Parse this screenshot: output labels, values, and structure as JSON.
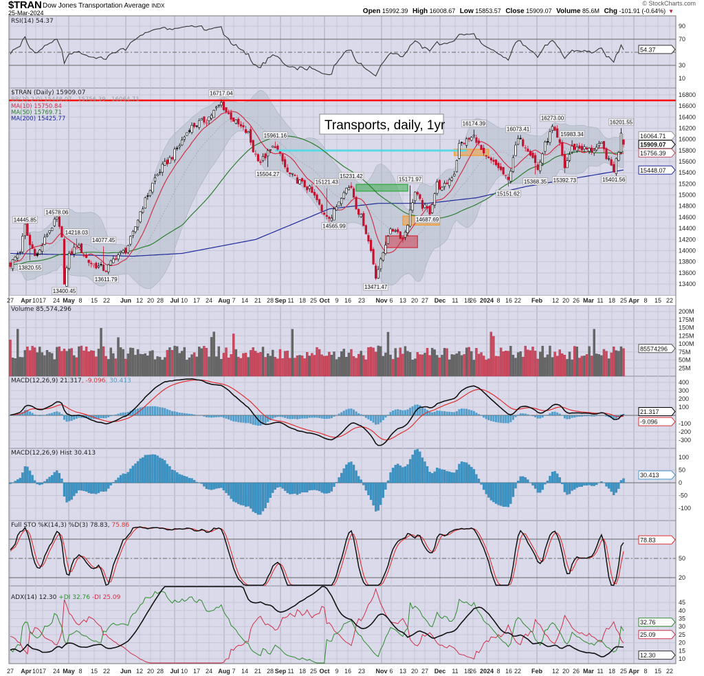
{
  "header": {
    "symbol": "$TRAN",
    "name": "Dow Jones Transportation Average",
    "exchange": "INDX",
    "date": "25-Mar-2024",
    "copyright": "© StockCharts.com",
    "open_label": "Open",
    "open": "15992.39",
    "high_label": "High",
    "high": "16008.67",
    "low_label": "Low",
    "low": "15853.57",
    "close_label": "Close",
    "close": "15909.07",
    "volume_label": "Volume",
    "volume": "85.6M",
    "chg_label": "Chg",
    "chg": "-101.91 (-0.64%)"
  },
  "panels": {
    "rsi": {
      "legend": "RSI(14) 54.37",
      "ticks": [
        "90",
        "70",
        "30",
        "10"
      ],
      "tag": "54.37"
    },
    "price": {
      "legend": "$TRAN (Daily) 15909.07",
      "bb_legend": "BB(20,2.0) 15448.07 - 15756.39 - 16064.71",
      "ma10": "MA(10) 15750.84",
      "ma50": "MA(50) 15769.71",
      "ma200": "MA(200) 15425.77",
      "ticks": [
        "16800",
        "16600",
        "16400",
        "16200",
        "16000",
        "15800",
        "15600",
        "15400",
        "15200",
        "15000",
        "14800",
        "14600",
        "14400",
        "14200",
        "14000",
        "13800",
        "13600",
        "13400"
      ],
      "tags": {
        "bb_upper": "16064.71",
        "close": "15909.07",
        "bb_mid": "15756.39",
        "bb_lower": "15448.07"
      },
      "annotation": "Transports, daily, 1yr"
    },
    "volume": {
      "legend": "Volume 85,574,296",
      "ticks": [
        "200M",
        "175M",
        "150M",
        "125M",
        "100M",
        "75M",
        "50M",
        "25M"
      ],
      "tag": "85574296"
    },
    "macd": {
      "legend": "MACD(12,26,9) 21.317",
      "signal": ", -9.096",
      "hist": ", 30.413",
      "ticks": [
        "400",
        "300",
        "200",
        "100",
        "-100",
        "-200",
        "-300"
      ],
      "tag": "21.317",
      "signal_tag": "-9.096"
    },
    "hist": {
      "legend": "MACD(12,26,9) Hist 30.413",
      "ticks": [
        "100",
        "50",
        "0",
        "-50",
        "-100"
      ],
      "tag": "30.413"
    },
    "sto": {
      "legend": "Full STO %K(14,3) %D(3) 78.83,",
      "d": " 75.86",
      "ticks": [
        "50",
        "20"
      ],
      "tag": "78.83"
    },
    "adx": {
      "legend": "ADX(14) 12.30",
      "plus": "+DI 32.76",
      "minus": "-DI 25.09",
      "ticks": [
        "45",
        "40",
        "35",
        "30",
        "25",
        "20",
        "15",
        "10"
      ],
      "tags": {
        "plus": "32.76",
        "minus": "25.09",
        "adx": "12.30"
      }
    }
  },
  "x_axis": {
    "labels": [
      {
        "text": "27"
      },
      {
        "text": "Apr",
        "month": true
      },
      {
        "text": "10"
      },
      {
        "text": "17"
      },
      {
        "text": "24"
      },
      {
        "text": "May",
        "month": true
      },
      {
        "text": "8"
      },
      {
        "text": "15"
      },
      {
        "text": "22"
      },
      {
        "text": "Jun",
        "month": true
      },
      {
        "text": "12"
      },
      {
        "text": "20"
      },
      {
        "text": "28"
      },
      {
        "text": "Jul",
        "month": true
      },
      {
        "text": "10"
      },
      {
        "text": "17"
      },
      {
        "text": "24"
      },
      {
        "text": "Aug",
        "month": true
      },
      {
        "text": "7"
      },
      {
        "text": "14"
      },
      {
        "text": "21"
      },
      {
        "text": "28"
      },
      {
        "text": "Sep",
        "month": true
      },
      {
        "text": "11"
      },
      {
        "text": "18"
      },
      {
        "text": "25"
      },
      {
        "text": "Oct",
        "month": true
      },
      {
        "text": "9"
      },
      {
        "text": "16"
      },
      {
        "text": "23"
      },
      {
        "text": "Nov",
        "month": true
      },
      {
        "text": "6"
      },
      {
        "text": "13"
      },
      {
        "text": "20"
      },
      {
        "text": "27"
      },
      {
        "text": "Dec",
        "month": true
      },
      {
        "text": "11"
      },
      {
        "text": "18"
      },
      {
        "text": "26"
      },
      {
        "text": "2024",
        "month": true
      },
      {
        "text": "8"
      },
      {
        "text": "16"
      },
      {
        "text": "22"
      },
      {
        "text": "Feb",
        "month": true
      },
      {
        "text": "12"
      },
      {
        "text": "20"
      },
      {
        "text": "26"
      },
      {
        "text": "Mar",
        "month": true
      },
      {
        "text": "11"
      },
      {
        "text": "18"
      },
      {
        "text": "25"
      },
      {
        "text": "Apr",
        "month": true
      },
      {
        "text": "8"
      },
      {
        "text": "15"
      },
      {
        "text": "22"
      }
    ]
  },
  "chart_data": {
    "type": "candlestick",
    "title": "$TRAN Dow Jones Transportation Average (Daily)",
    "ylim": [
      13300,
      16900
    ],
    "close_keypoints_by_trading_day": [
      [
        0,
        13750
      ],
      [
        4,
        14000
      ],
      [
        6,
        14445
      ],
      [
        8,
        14100
      ],
      [
        11,
        13900
      ],
      [
        15,
        14300
      ],
      [
        19,
        14578
      ],
      [
        21,
        14200
      ],
      [
        22,
        13450
      ],
      [
        24,
        13900
      ],
      [
        27,
        14100
      ],
      [
        29,
        14000
      ],
      [
        32,
        13800
      ],
      [
        34,
        13750
      ],
      [
        39,
        13650
      ],
      [
        43,
        13900
      ],
      [
        47,
        14000
      ],
      [
        50,
        14300
      ],
      [
        53,
        14700
      ],
      [
        56,
        15000
      ],
      [
        59,
        15300
      ],
      [
        62,
        15500
      ],
      [
        66,
        15700
      ],
      [
        69,
        15900
      ],
      [
        73,
        16200
      ],
      [
        77,
        16300
      ],
      [
        80,
        16350
      ],
      [
        86,
        16650
      ],
      [
        88,
        16500
      ],
      [
        92,
        16300
      ],
      [
        97,
        16100
      ],
      [
        99,
        15800
      ],
      [
        102,
        15600
      ],
      [
        105,
        15750
      ],
      [
        108,
        15900
      ],
      [
        111,
        15600
      ],
      [
        113,
        15400
      ],
      [
        116,
        15300
      ],
      [
        119,
        15200
      ],
      [
        122,
        15100
      ],
      [
        125,
        14900
      ],
      [
        127,
        14700
      ],
      [
        131,
        14600
      ],
      [
        133,
        14800
      ],
      [
        136,
        15100
      ],
      [
        139,
        15150
      ],
      [
        141,
        14800
      ],
      [
        144,
        14500
      ],
      [
        147,
        14000
      ],
      [
        149,
        13550
      ],
      [
        151,
        13800
      ],
      [
        154,
        14300
      ],
      [
        157,
        14400
      ],
      [
        160,
        14200
      ],
      [
        162,
        14500
      ],
      [
        164,
        14900
      ],
      [
        165,
        15050
      ],
      [
        168,
        14800
      ],
      [
        171,
        14700
      ],
      [
        174,
        15200
      ],
      [
        176,
        15100
      ],
      [
        181,
        15400
      ],
      [
        183,
        15900
      ],
      [
        189,
        16050
      ],
      [
        190,
        16000
      ],
      [
        193,
        15700
      ],
      [
        196,
        15600
      ],
      [
        199,
        15500
      ],
      [
        203,
        15250
      ],
      [
        205,
        15700
      ],
      [
        207,
        16000
      ],
      [
        210,
        15900
      ],
      [
        213,
        15700
      ],
      [
        215,
        15450
      ],
      [
        218,
        15900
      ],
      [
        221,
        16200
      ],
      [
        224,
        15900
      ],
      [
        226,
        15500
      ],
      [
        229,
        15850
      ],
      [
        232,
        15850
      ],
      [
        237,
        15800
      ],
      [
        241,
        15900
      ],
      [
        244,
        15600
      ],
      [
        246,
        15450
      ],
      [
        248,
        15800
      ],
      [
        249,
        16150
      ],
      [
        250,
        15909.07
      ]
    ],
    "ma200_keypoints": [
      [
        0,
        13950
      ],
      [
        50,
        13900
      ],
      [
        70,
        13950
      ],
      [
        100,
        14200
      ],
      [
        130,
        14750
      ],
      [
        150,
        14850
      ],
      [
        170,
        14850
      ],
      [
        190,
        14950
      ],
      [
        210,
        15150
      ],
      [
        230,
        15300
      ],
      [
        250,
        15450
      ]
    ],
    "last_bar": {
      "open": 15992.39,
      "high": 16008.67,
      "low": 15853.57,
      "close": 15909.07,
      "volume": 85574296
    },
    "levels": [
      {
        "name": "resistance",
        "value": 16700,
        "color": "#ff0000"
      },
      {
        "name": "support",
        "value": 15800,
        "from_day": 108,
        "to_day": 186,
        "color": "#5ad8e6"
      }
    ],
    "zones": [
      {
        "from_day": 141,
        "to_day": 162,
        "low": 15070,
        "high": 15190,
        "color": "#3fae52"
      },
      {
        "from_day": 160,
        "to_day": 175,
        "low": 14460,
        "high": 14620,
        "color": "#f0a040"
      },
      {
        "from_day": 153,
        "to_day": 166,
        "low": 14055,
        "high": 14265,
        "color": "#d04050"
      },
      {
        "from_day": 181,
        "to_day": 195,
        "low": 15710,
        "high": 15820,
        "color": "#f0a040"
      }
    ],
    "price_labels": [
      {
        "day": 6,
        "value": "14445.85",
        "type": "high"
      },
      {
        "day": 19,
        "value": "14578.06",
        "type": "high"
      },
      {
        "day": 27,
        "value": "14218.03",
        "type": "high"
      },
      {
        "day": 8,
        "value": "13820.55",
        "type": "low"
      },
      {
        "day": 22,
        "value": "13400.45",
        "type": "low"
      },
      {
        "day": 38,
        "value": "14077.45",
        "type": "high"
      },
      {
        "day": 39,
        "value": "13611.79",
        "type": "low"
      },
      {
        "day": 86,
        "value": "16717.04",
        "type": "high"
      },
      {
        "day": 108,
        "value": "15961.16",
        "type": "high"
      },
      {
        "day": 105,
        "value": "15504.27",
        "type": "low"
      },
      {
        "day": 129,
        "value": "15121.43",
        "type": "high"
      },
      {
        "day": 132,
        "value": "14565.99",
        "type": "low"
      },
      {
        "day": 139,
        "value": "15231.42",
        "type": "high"
      },
      {
        "day": 149,
        "value": "13471.47",
        "type": "low"
      },
      {
        "day": 163,
        "value": "15171.97",
        "type": "high"
      },
      {
        "day": 170,
        "value": "14687.69",
        "type": "low"
      },
      {
        "day": 189,
        "value": "16174.39",
        "type": "high"
      },
      {
        "day": 203,
        "value": "15151.62",
        "type": "low"
      },
      {
        "day": 207,
        "value": "16073.41",
        "type": "high"
      },
      {
        "day": 214,
        "value": "15368.35",
        "type": "low"
      },
      {
        "day": 221,
        "value": "16273.00",
        "type": "high"
      },
      {
        "day": 226,
        "value": "15392.73",
        "type": "low"
      },
      {
        "day": 229,
        "value": "15983.34",
        "type": "high"
      },
      {
        "day": 249,
        "value": "16201.55",
        "type": "high"
      },
      {
        "day": 246,
        "value": "15401.56",
        "type": "low"
      }
    ],
    "colors": {
      "up": "#000000",
      "down": "#c8102e",
      "ma10": "#d0314a",
      "ma50": "#2e7d32",
      "ma200": "#1f2a99",
      "bb": "#b4c0c8",
      "macd_hist": "#3b93c4",
      "panel_bg": "#dadaea"
    }
  }
}
